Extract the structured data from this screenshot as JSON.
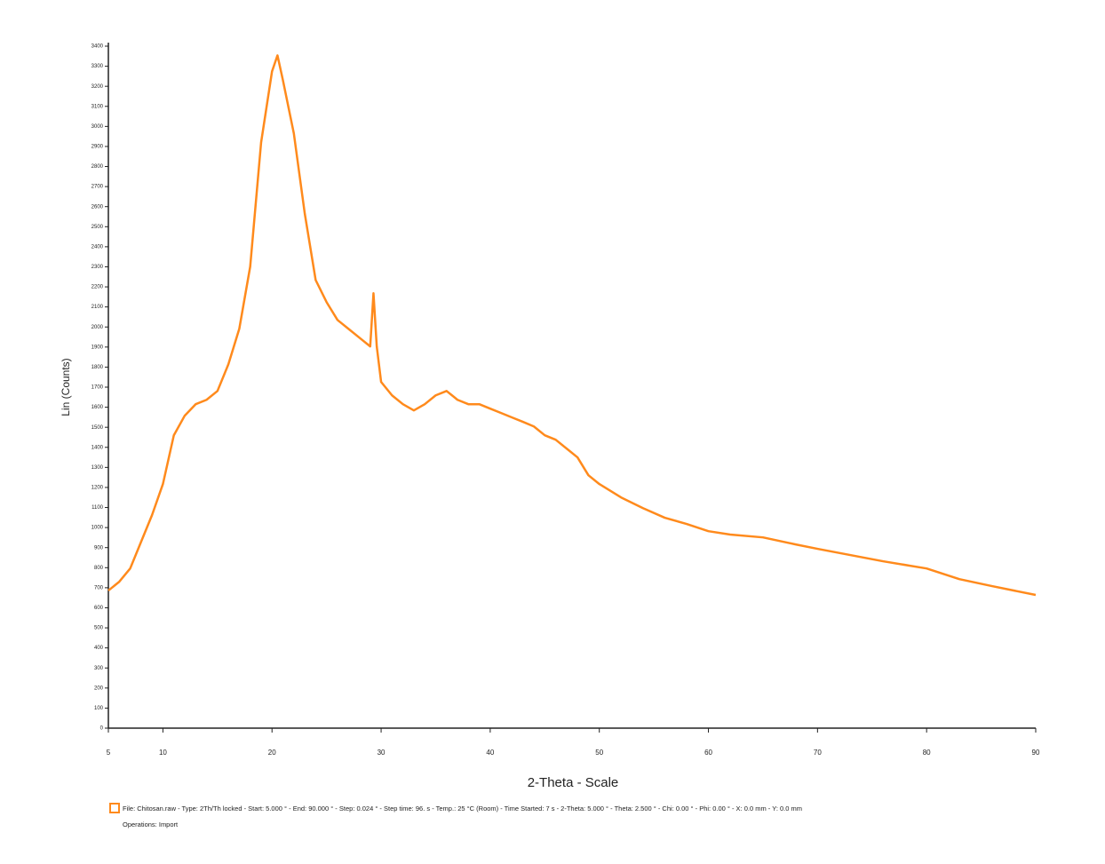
{
  "chart_data": {
    "type": "line",
    "xlabel": "2-Theta - Scale",
    "ylabel": "Lin (Counts)",
    "x": [
      5,
      6,
      7,
      8,
      9,
      10,
      11,
      12,
      13,
      14,
      15,
      16,
      17,
      18,
      19,
      20,
      20.5,
      21,
      22,
      23,
      24,
      25,
      26,
      27,
      28,
      29,
      29.3,
      29.6,
      30,
      31,
      32,
      33,
      34,
      35,
      36,
      37,
      38,
      39,
      40,
      41,
      42,
      43,
      44,
      45,
      46,
      47,
      48,
      49,
      50,
      52,
      54,
      56,
      58,
      60,
      62,
      65,
      68,
      70,
      73,
      76,
      80,
      83,
      86,
      90
    ],
    "series": [
      {
        "name": "File: Chitosan.raw - Type: 2Th/Th locked - Start: 5.000 ° - End: 90.000 ° - Step: 0.024 ° - Step time: 96. s - Temp.: 25 °C (Room) - Time Started: 7 s - 2-Theta: 5.000 ° - Theta: 2.500 ° - Chi: 0.00 ° - Phi: 0.00 ° - X: 0.0 mm - Y: 0.0 mm",
        "note": "Operations: Import",
        "color": "#ff8a1c",
        "values": [
          686,
          730,
          796,
          929,
          1062,
          1217,
          1460,
          1558,
          1615,
          1637,
          1681,
          1814,
          1991,
          2301,
          2920,
          3274,
          3354,
          3230,
          2965,
          2566,
          2234,
          2124,
          2035,
          1991,
          1947,
          1903,
          2168,
          1903,
          1726,
          1659,
          1615,
          1584,
          1615,
          1659,
          1681,
          1637,
          1615,
          1615,
          1593,
          1571,
          1549,
          1527,
          1504,
          1460,
          1438,
          1394,
          1350,
          1261,
          1217,
          1150,
          1097,
          1049,
          1018,
          982,
          965,
          951,
          916,
          894,
          863,
          832,
          796,
          743,
          708,
          664
        ]
      }
    ],
    "xlim": [
      5,
      90
    ],
    "xticks": [
      5,
      10,
      20,
      30,
      40,
      50,
      60,
      70,
      80,
      90
    ],
    "ylim": [
      0,
      3400
    ],
    "yticks": [
      0,
      100,
      200,
      300,
      400,
      500,
      600,
      700,
      800,
      900,
      1000,
      1100,
      1200,
      1300,
      1400,
      1500,
      1600,
      1700,
      1800,
      1900,
      2000,
      2100,
      2200,
      2300,
      2400,
      2500,
      2600,
      2700,
      2800,
      2900,
      3000,
      3100,
      3200,
      3300,
      3400
    ]
  }
}
